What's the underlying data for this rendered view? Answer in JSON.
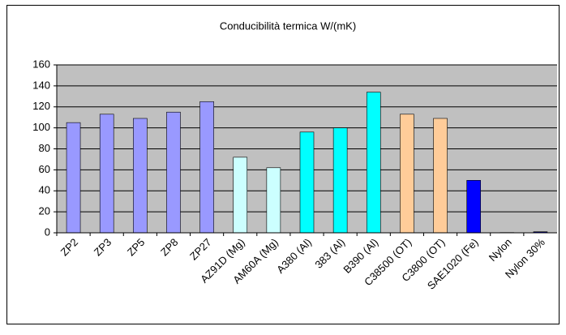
{
  "chart_data": {
    "type": "bar",
    "title": "Conducibilità termica W/(mK)",
    "categories": [
      "ZP2",
      "ZP3",
      "ZP5",
      "ZP8",
      "ZP27",
      "AZ91D (Mg)",
      "AM60A (Mg)",
      "A380 (Al)",
      "383 (Al)",
      "B390 (Al)",
      "C38500 (OT)",
      "C3800 (OT)",
      "SAE1020 (Fe)",
      "Nylon",
      "Nylon 30%"
    ],
    "values": [
      105,
      113,
      109,
      115,
      125,
      72,
      62,
      96,
      100,
      134,
      113,
      109,
      50,
      0.25,
      1
    ],
    "colors": [
      "#9999ff",
      "#9999ff",
      "#9999ff",
      "#9999ff",
      "#9999ff",
      "#ccffff",
      "#ccffff",
      "#00ffff",
      "#00ffff",
      "#00ffff",
      "#ffcc99",
      "#ffcc99",
      "#0000ff",
      "#ffffff",
      "#000080"
    ],
    "ylim": [
      0,
      160
    ],
    "yticks": [
      0,
      20,
      40,
      60,
      80,
      100,
      120,
      140,
      160
    ],
    "grid": true
  }
}
